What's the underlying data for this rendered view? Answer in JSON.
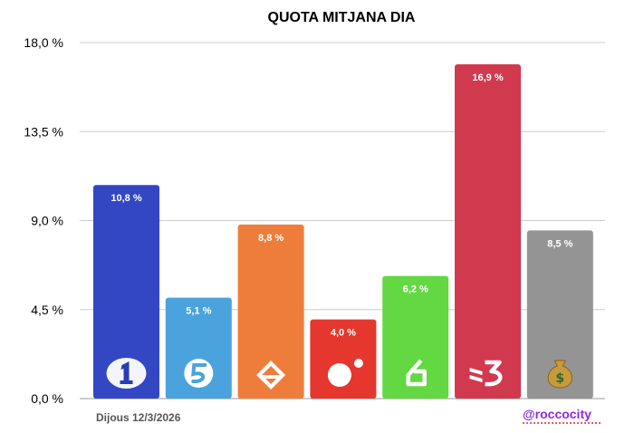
{
  "chart_data": {
    "type": "bar",
    "title": "QUOTA MITJANA DIA",
    "categories": [
      "La 1",
      "Telecinco",
      "Antena 3",
      "Cuatro",
      "laSexta",
      "TV3",
      "Altres"
    ],
    "icons": [
      "la1-logo-icon",
      "telecinco-logo-icon",
      "antena3-logo-icon",
      "cuatro-logo-icon",
      "lasexta-logo-icon",
      "tv3-logo-icon",
      "money-bag-icon"
    ],
    "values": [
      10.8,
      5.1,
      8.8,
      4.0,
      6.2,
      16.9,
      8.5
    ],
    "value_labels": [
      "10,8 %",
      "5,1 %",
      "8,8 %",
      "4,0 %",
      "6,2 %",
      "16,9 %",
      "8,5 %"
    ],
    "colors": [
      "#3347c4",
      "#4ba3dd",
      "#ee7d3b",
      "#e5372e",
      "#63d843",
      "#d1394f",
      "#949494"
    ],
    "ylim": [
      0,
      18
    ],
    "yticks": [
      0,
      4.5,
      9,
      13.5,
      18
    ],
    "ytick_labels": [
      "0,0 %",
      "4,5 %",
      "9,0 %",
      "13,5 %",
      "18,0 %"
    ],
    "grid": true,
    "xlabel": "",
    "ylabel": ""
  },
  "footer": {
    "date": "Dijous 12/3/2026",
    "handle": "@roccocity"
  }
}
